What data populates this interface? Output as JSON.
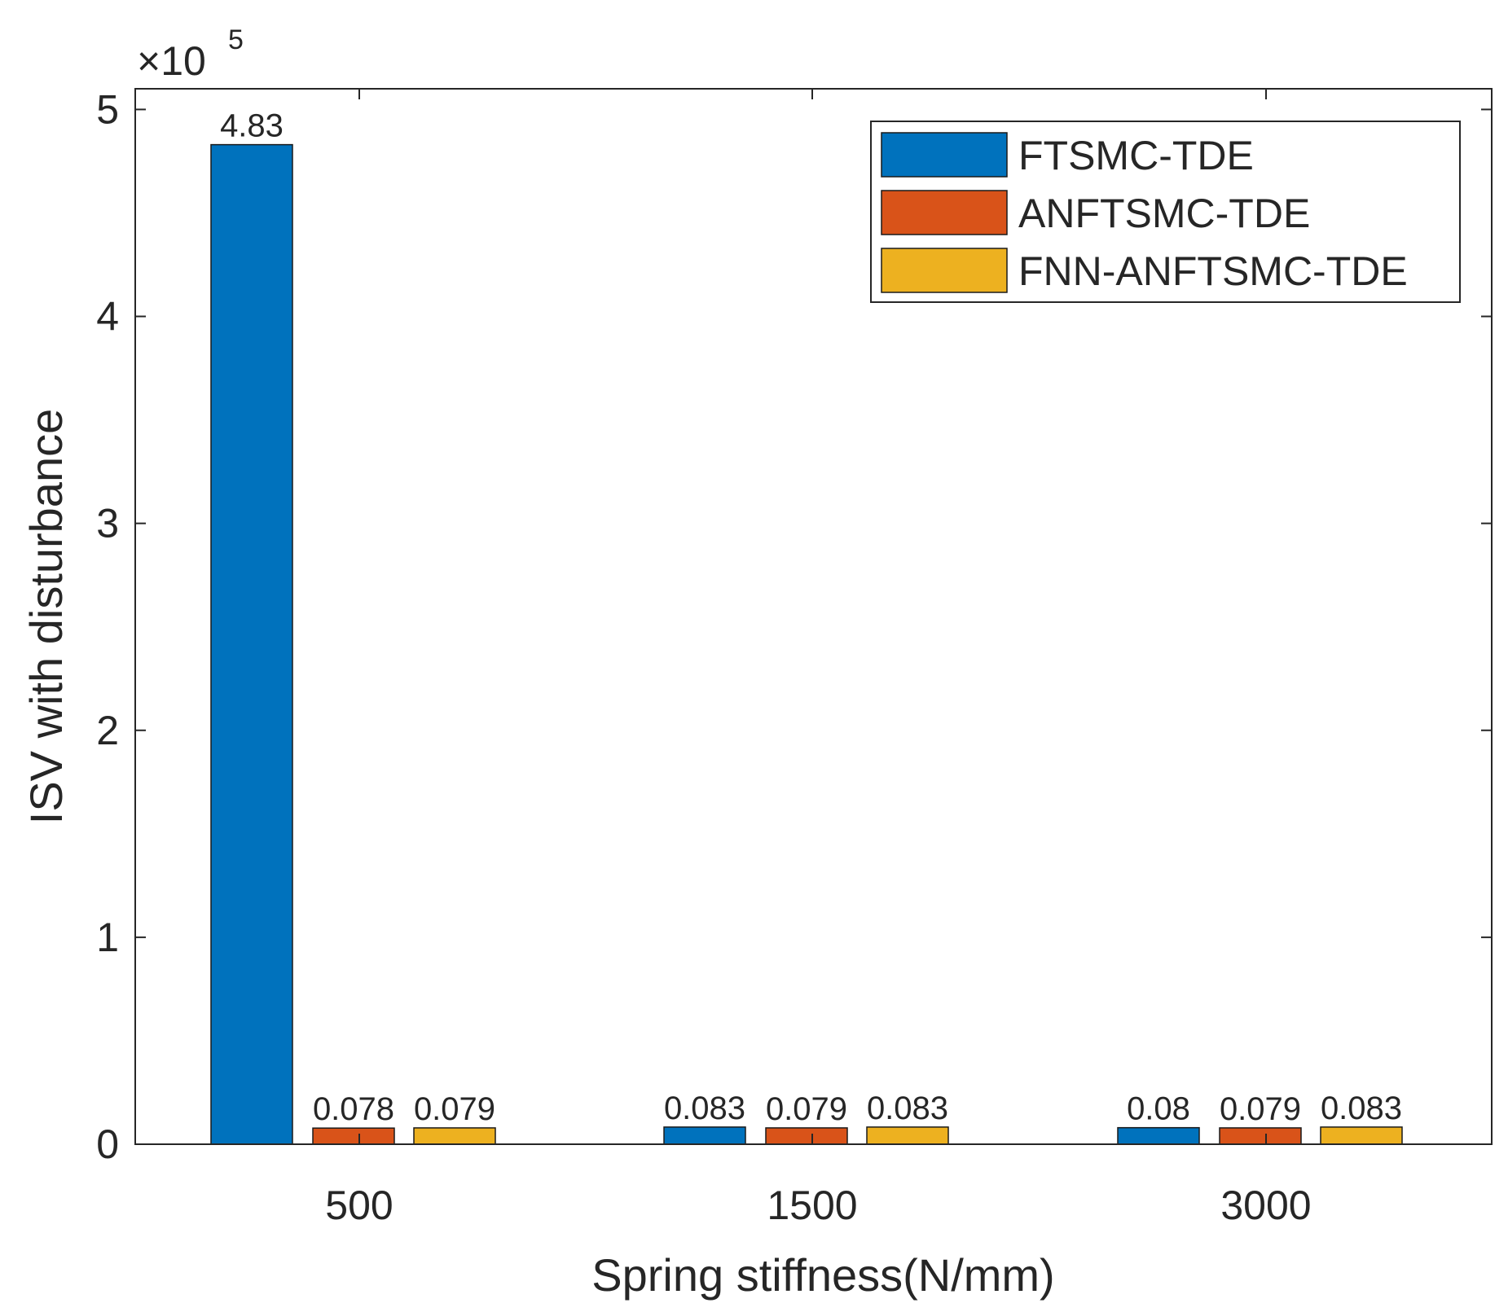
{
  "chart_data": {
    "type": "bar",
    "title": "",
    "xlabel": "Spring stiffness(N/mm)",
    "ylabel": "ISV with disturbance",
    "y_exponent_label": "×10",
    "y_exponent_power": "5",
    "categories": [
      "500",
      "1500",
      "3000"
    ],
    "ylim": [
      0,
      5.1
    ],
    "y_ticks": [
      0,
      1,
      2,
      3,
      4,
      5
    ],
    "y_tick_labels": [
      "0",
      "1",
      "2",
      "3",
      "4",
      "5"
    ],
    "grid": false,
    "legend_position": "top-right",
    "series": [
      {
        "name": "FTSMC-TDE",
        "color": "#0072BD",
        "values": [
          4.83,
          0.083,
          0.08
        ],
        "labels": [
          "4.83",
          "0.083",
          "0.08"
        ]
      },
      {
        "name": "ANFTSMC-TDE",
        "color": "#D95319",
        "values": [
          0.078,
          0.079,
          0.079
        ],
        "labels": [
          "0.078",
          "0.079",
          "0.079"
        ]
      },
      {
        "name": "FNN-ANFTSMC-TDE",
        "color": "#EDB120",
        "values": [
          0.079,
          0.083,
          0.083
        ],
        "labels": [
          "0.079",
          "0.083",
          "0.083"
        ]
      }
    ]
  }
}
